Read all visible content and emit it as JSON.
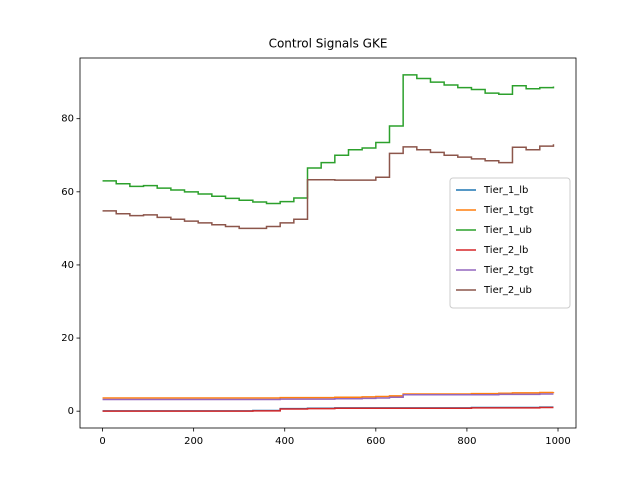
{
  "chart_data": {
    "type": "line",
    "title": "Control Signals GKE",
    "drawstyle": "steps-post",
    "legend": "center right",
    "x": [
      0,
      30,
      60,
      90,
      120,
      150,
      180,
      210,
      240,
      270,
      300,
      330,
      360,
      390,
      420,
      450,
      480,
      510,
      540,
      570,
      600,
      630,
      660,
      690,
      720,
      750,
      780,
      810,
      840,
      870,
      900,
      930,
      960,
      990
    ],
    "series": [
      {
        "name": "Tier_1_lb",
        "color": "#1f77b4",
        "values": [
          0.1,
          0.1,
          0.1,
          0.1,
          0.1,
          0.1,
          0.1,
          0.1,
          0.1,
          0.1,
          0.1,
          0.2,
          0.2,
          0.7,
          0.7,
          0.8,
          0.8,
          0.9,
          0.9,
          0.9,
          0.9,
          0.9,
          0.9,
          0.9,
          0.9,
          0.9,
          0.9,
          1.0,
          1.0,
          1.0,
          1.0,
          1.0,
          1.1,
          1.1
        ]
      },
      {
        "name": "Tier_1_tgt",
        "color": "#ff7f0e",
        "values": [
          3.6,
          3.6,
          3.6,
          3.6,
          3.6,
          3.6,
          3.6,
          3.6,
          3.6,
          3.6,
          3.6,
          3.6,
          3.6,
          3.7,
          3.7,
          3.7,
          3.7,
          3.8,
          3.8,
          3.9,
          4.0,
          4.2,
          4.7,
          4.7,
          4.7,
          4.7,
          4.7,
          4.8,
          4.8,
          4.9,
          5.0,
          5.0,
          5.1,
          5.2
        ]
      },
      {
        "name": "Tier_1_ub",
        "color": "#2ca02c",
        "values": [
          63,
          62.2,
          61.5,
          61.7,
          61,
          60.5,
          60,
          59.4,
          58.8,
          58.2,
          57.7,
          57.2,
          56.8,
          57.3,
          58.3,
          66.5,
          68,
          70,
          71.5,
          72,
          73.5,
          78,
          92,
          91,
          90,
          89.2,
          88.5,
          88,
          87,
          86.7,
          89,
          88.2,
          88.5,
          88.8
        ]
      },
      {
        "name": "Tier_2_lb",
        "color": "#d62728",
        "values": [
          0.0,
          0.0,
          0.0,
          0.0,
          0.0,
          0.0,
          0.0,
          0.0,
          0.0,
          0.0,
          0.0,
          0.1,
          0.1,
          0.6,
          0.6,
          0.7,
          0.7,
          0.8,
          0.8,
          0.8,
          0.8,
          0.8,
          0.8,
          0.8,
          0.8,
          0.8,
          0.8,
          0.9,
          0.9,
          0.9,
          0.9,
          0.9,
          1.0,
          1.0
        ]
      },
      {
        "name": "Tier_2_tgt",
        "color": "#9467bd",
        "values": [
          3.2,
          3.2,
          3.2,
          3.2,
          3.2,
          3.2,
          3.2,
          3.2,
          3.2,
          3.2,
          3.2,
          3.2,
          3.2,
          3.3,
          3.3,
          3.3,
          3.3,
          3.4,
          3.4,
          3.5,
          3.6,
          3.8,
          4.5,
          4.5,
          4.5,
          4.5,
          4.5,
          4.5,
          4.5,
          4.6,
          4.6,
          4.6,
          4.7,
          4.7
        ]
      },
      {
        "name": "Tier_2_ub",
        "color": "#8c564b",
        "values": [
          54.8,
          54,
          53.5,
          53.7,
          53,
          52.5,
          52,
          51.5,
          51,
          50.5,
          50,
          50,
          50.5,
          51.5,
          52.5,
          63.3,
          63.3,
          63.2,
          63.2,
          63.2,
          64,
          70.5,
          72.3,
          71.5,
          70.8,
          70,
          69.5,
          69,
          68.5,
          68,
          72.2,
          71.5,
          72.5,
          73
        ]
      }
    ],
    "xlim": [
      -49.5,
      1039.5
    ],
    "xticks": [
      0,
      200,
      400,
      600,
      800,
      1000
    ],
    "ylim": [
      -4.6,
      96.6
    ],
    "yticks": [
      0,
      20,
      40,
      60,
      80
    ]
  }
}
